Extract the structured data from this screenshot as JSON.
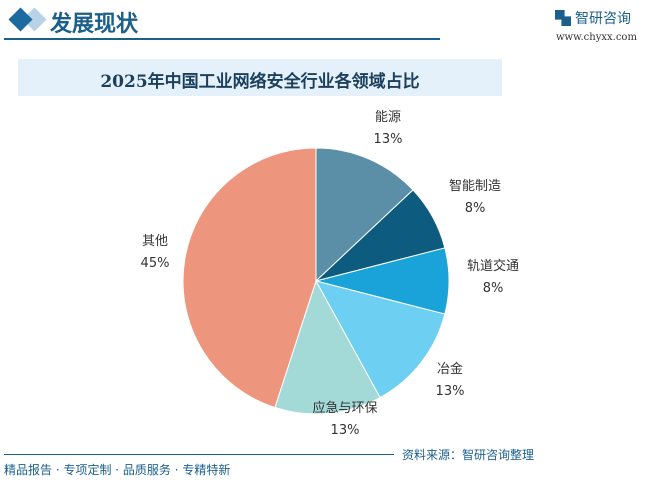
{
  "header": {
    "title": "发展现状",
    "brand": "智研咨询",
    "url": "www.chyxx.com"
  },
  "footer": {
    "source": "资料来源：智研咨询整理",
    "slogan": "精品报告 · 专项定制 · 品质服务 · 专精特新"
  },
  "chart_data": {
    "type": "pie",
    "title": "2025年中国工业网络安全行业各领域占比",
    "start": "12 o'clock, clockwise",
    "categories": [
      "能源",
      "智能制造",
      "轨道交通",
      "冶金",
      "应急与环保",
      "其他"
    ],
    "values": [
      13,
      8,
      8,
      13,
      13,
      45
    ],
    "labels": [
      "13%",
      "8%",
      "8%",
      "13%",
      "13%",
      "45%"
    ],
    "colors": [
      "#5b8fa8",
      "#0d5b7f",
      "#1aa3d9",
      "#6dcff2",
      "#a3dad8",
      "#ee957d"
    ]
  }
}
